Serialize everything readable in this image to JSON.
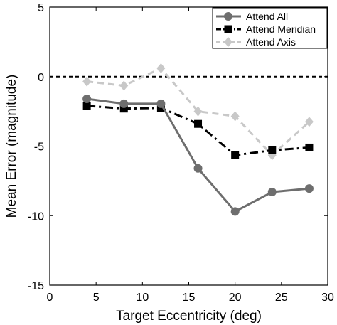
{
  "chart_data": {
    "type": "line",
    "xlabel": "Target Eccentricity (deg)",
    "ylabel": "Mean Error (magnitude)",
    "xlim": [
      0,
      30
    ],
    "ylim": [
      -15,
      5
    ],
    "xticks": [
      0,
      5,
      10,
      15,
      20,
      25,
      30
    ],
    "yticks": [
      -15,
      -10,
      -5,
      0,
      5
    ],
    "reference_line": {
      "y": 0,
      "style": "dashed",
      "color": "#000000"
    },
    "legend_position": "top-right",
    "x": [
      4,
      8,
      12,
      16,
      20,
      24,
      28
    ],
    "series": [
      {
        "name": "Attend All",
        "marker": "circle",
        "line": "solid",
        "color": "#6e6e6e",
        "values": [
          -1.6,
          -1.95,
          -1.95,
          -6.6,
          -9.7,
          -8.3,
          -8.05
        ]
      },
      {
        "name": "Attend Meridian",
        "marker": "square",
        "line": "dashdot",
        "color": "#000000",
        "values": [
          -2.1,
          -2.3,
          -2.25,
          -3.4,
          -5.65,
          -5.3,
          -5.1
        ]
      },
      {
        "name": "Attend Axis",
        "marker": "diamond",
        "line": "dashed",
        "color": "#c8c8c8",
        "values": [
          -0.35,
          -0.65,
          0.6,
          -2.5,
          -2.85,
          -5.65,
          -3.25
        ]
      }
    ]
  }
}
